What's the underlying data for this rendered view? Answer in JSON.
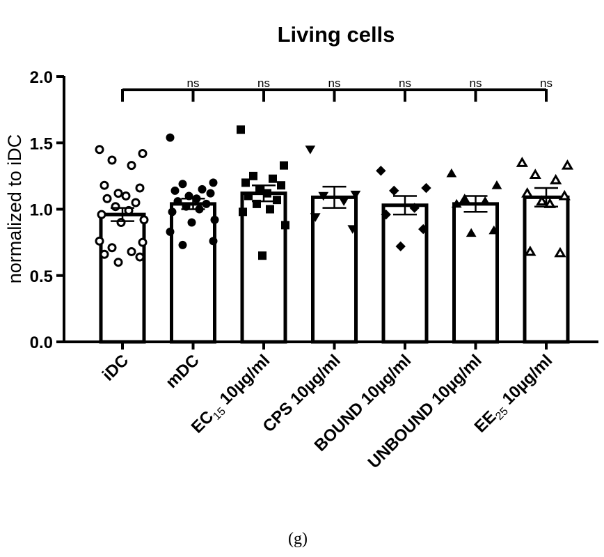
{
  "chart_data": {
    "type": "bar",
    "title": "Living cells",
    "ylabel": "normalized to iDC",
    "xlabel": "",
    "ylim": [
      0,
      2.0
    ],
    "yticks": [
      "0.0",
      "0.5",
      "1.0",
      "1.5",
      "2.0"
    ],
    "categories": [
      {
        "name": "iDC",
        "label_main": "iDC",
        "label_sub": "",
        "label_rest": ""
      },
      {
        "name": "mDC",
        "label_main": "mDC",
        "label_sub": "",
        "label_rest": ""
      },
      {
        "name": "EC15 10µg/ml",
        "label_main": "EC",
        "label_sub": "15",
        "label_rest": " 10µg/ml"
      },
      {
        "name": "CPS 10µg/ml",
        "label_main": "CPS 10µg/ml",
        "label_sub": "",
        "label_rest": ""
      },
      {
        "name": "BOUND 10µg/ml",
        "label_main": "BOUND 10µg/ml",
        "label_sub": "",
        "label_rest": ""
      },
      {
        "name": "UNBOUND 10µg/ml",
        "label_main": "UNBOUND 10µg/ml",
        "label_sub": "",
        "label_rest": ""
      },
      {
        "name": "EE25 10µg/ml",
        "label_main": "EE",
        "label_sub": "25",
        "label_rest": " 10µg/ml"
      }
    ],
    "means": [
      0.96,
      1.04,
      1.12,
      1.09,
      1.03,
      1.04,
      1.09
    ],
    "sem": [
      0.05,
      0.04,
      0.06,
      0.08,
      0.07,
      0.06,
      0.07
    ],
    "markers": [
      "circle-open",
      "circle-filled",
      "square-filled",
      "triangle-down-filled",
      "diamond-filled",
      "triangle-up-filled",
      "triangle-up-open"
    ],
    "points": [
      [
        1.45,
        1.42,
        1.37,
        1.33,
        1.18,
        1.16,
        1.12,
        1.1,
        1.08,
        1.05,
        1.02,
        0.99,
        0.96,
        0.92,
        0.9,
        0.76,
        0.75,
        0.71,
        0.68,
        0.66,
        0.64,
        0.6
      ],
      [
        1.54,
        1.2,
        1.19,
        1.15,
        1.14,
        1.12,
        1.1,
        1.08,
        1.06,
        1.04,
        1.02,
        1.0,
        0.98,
        0.92,
        0.9,
        0.83,
        0.76,
        0.73
      ],
      [
        1.6,
        1.33,
        1.25,
        1.23,
        1.2,
        1.18,
        1.15,
        1.12,
        1.1,
        1.07,
        1.04,
        1.0,
        0.98,
        0.88,
        0.65
      ],
      [
        1.45,
        1.11,
        1.1,
        1.06,
        0.94,
        0.85
      ],
      [
        1.29,
        1.16,
        1.14,
        1.01,
        0.96,
        0.85,
        0.72
      ],
      [
        1.27,
        1.18,
        1.08,
        1.06,
        1.04,
        0.84,
        0.82
      ],
      [
        1.35,
        1.33,
        1.26,
        1.22,
        1.12,
        1.1,
        1.06,
        1.04,
        0.68,
        0.67
      ]
    ],
    "comparisons": {
      "reference": "iDC",
      "labels": [
        "ns",
        "ns",
        "ns",
        "ns",
        "ns",
        "ns"
      ]
    },
    "bracket_level": 1.9,
    "caption": "(g)"
  }
}
